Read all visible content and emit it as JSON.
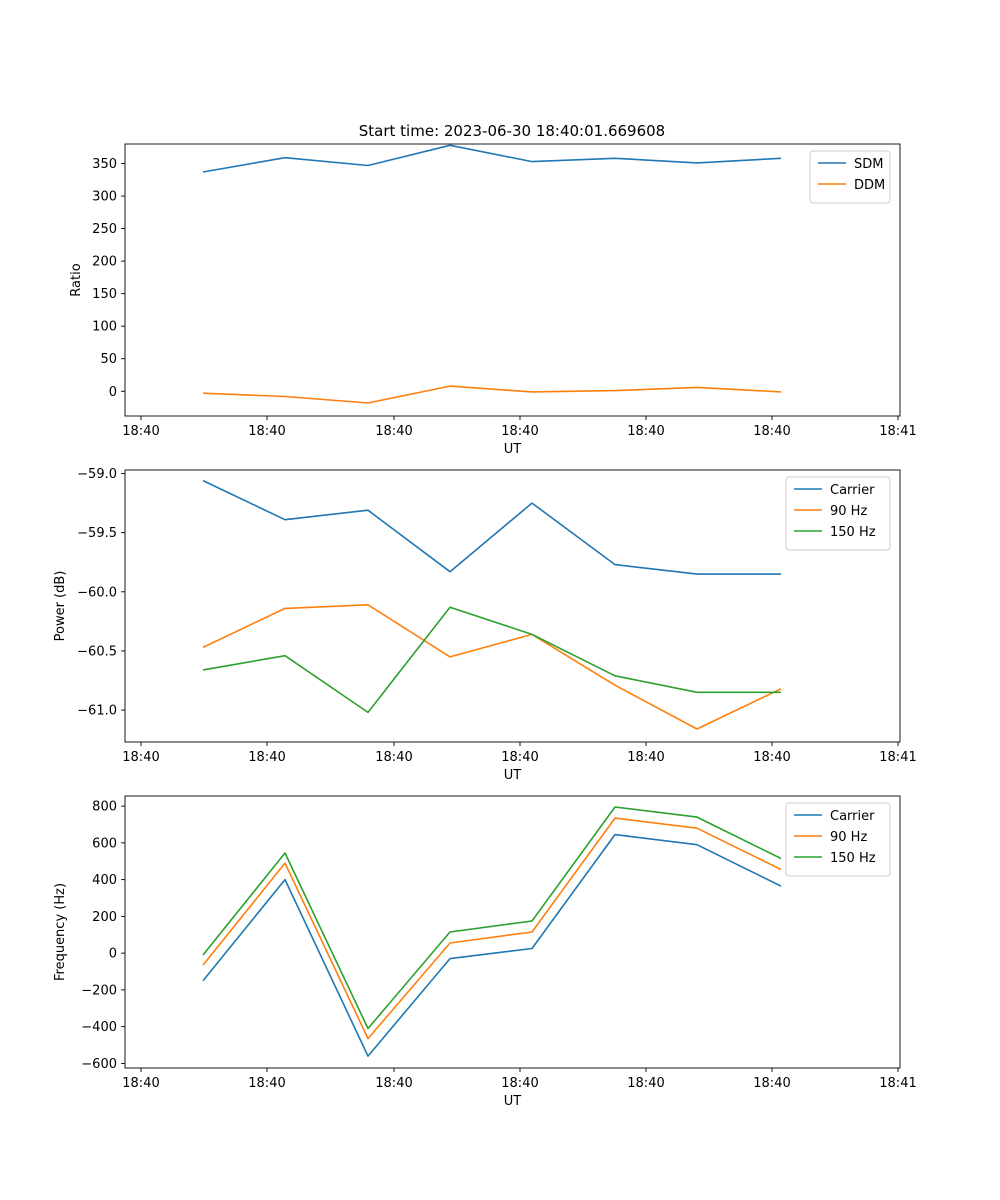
{
  "figure": {
    "title": "Start time: 2023-06-30 18:40:01.669608"
  },
  "colors": {
    "blue": "#1f77b4",
    "orange": "#ff7f0e",
    "green": "#2ca02c"
  },
  "chart_data": [
    {
      "type": "line",
      "title": "Start time: 2023-06-30 18:40:01.669608",
      "xlabel": "UT",
      "ylabel": "Ratio",
      "x_tick_labels": [
        "18:40",
        "18:40",
        "18:40",
        "18:40",
        "18:40",
        "18:40",
        "18:41"
      ],
      "y_ticks": [
        0,
        50,
        100,
        150,
        200,
        250,
        300,
        350
      ],
      "ylim": [
        -38,
        380
      ],
      "legend": "top-right",
      "grid": false,
      "series": [
        {
          "name": "SDM",
          "color": "#1f77b4",
          "values": [
            337,
            359,
            347,
            378,
            353,
            358,
            351,
            358
          ]
        },
        {
          "name": "DDM",
          "color": "#ff7f0e",
          "values": [
            -3,
            -8,
            -18,
            8,
            -1,
            1,
            6,
            -1
          ]
        }
      ]
    },
    {
      "type": "line",
      "title": "",
      "xlabel": "UT",
      "ylabel": "Power (dB)",
      "x_tick_labels": [
        "18:40",
        "18:40",
        "18:40",
        "18:40",
        "18:40",
        "18:40",
        "18:41"
      ],
      "y_ticks": [
        -59.0,
        -59.5,
        -60.0,
        -60.5,
        -61.0
      ],
      "y_tick_labels": [
        "−59.0",
        "−59.5",
        "−60.0",
        "−60.5",
        "−61.0"
      ],
      "ylim": [
        -61.27,
        -58.97
      ],
      "legend": "top-right",
      "grid": false,
      "series": [
        {
          "name": "Carrier",
          "color": "#1f77b4",
          "values": [
            -59.06,
            -59.39,
            -59.31,
            -59.83,
            -59.25,
            -59.77,
            -59.85,
            -59.85
          ]
        },
        {
          "name": "90 Hz",
          "color": "#ff7f0e",
          "values": [
            -60.47,
            -60.14,
            -60.11,
            -60.55,
            -60.36,
            -60.79,
            -61.16,
            -60.82
          ]
        },
        {
          "name": "150 Hz",
          "color": "#2ca02c",
          "values": [
            -60.66,
            -60.54,
            -61.02,
            -60.13,
            -60.36,
            -60.71,
            -60.85,
            -60.85
          ]
        }
      ]
    },
    {
      "type": "line",
      "title": "",
      "xlabel": "UT",
      "ylabel": "Frequency (Hz)",
      "x_tick_labels": [
        "18:40",
        "18:40",
        "18:40",
        "18:40",
        "18:40",
        "18:40",
        "18:41"
      ],
      "y_ticks": [
        -600,
        -400,
        -200,
        0,
        200,
        400,
        600,
        800
      ],
      "y_tick_labels": [
        "−600",
        "−400",
        "−200",
        "0",
        "200",
        "400",
        "600",
        "800"
      ],
      "ylim": [
        -625,
        855
      ],
      "legend": "top-right",
      "grid": false,
      "series": [
        {
          "name": "Carrier",
          "color": "#1f77b4",
          "values": [
            -150,
            400,
            -560,
            -30,
            25,
            645,
            590,
            365
          ]
        },
        {
          "name": "90 Hz",
          "color": "#ff7f0e",
          "values": [
            -65,
            490,
            -465,
            55,
            115,
            735,
            680,
            455
          ]
        },
        {
          "name": "150 Hz",
          "color": "#2ca02c",
          "values": [
            -10,
            545,
            -410,
            115,
            175,
            795,
            740,
            515
          ]
        }
      ]
    }
  ]
}
